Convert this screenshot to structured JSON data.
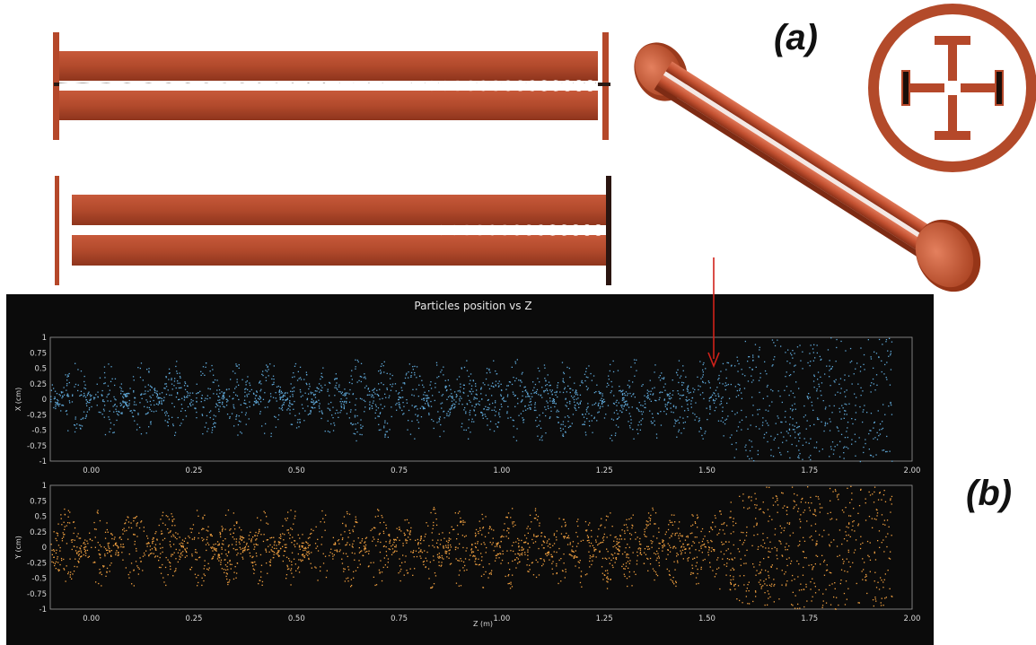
{
  "panels": {
    "a": "(a)",
    "b": "(b)"
  },
  "colors": {
    "electrode": "#b5482a",
    "electrode_dark": "#7a2a16",
    "series_x": "#5fa8d8",
    "series_y": "#f0a040",
    "plot_background": "#0b0b0b",
    "pointer": "#d0221a"
  },
  "chart_data": {
    "type": "scatter",
    "title": "Particles position vs Z",
    "xlabel": "Z (m)",
    "xlim": [
      -0.1,
      2.0
    ],
    "xticks": [
      "0.00",
      "0.25",
      "0.50",
      "0.75",
      "1.00",
      "1.25",
      "1.50",
      "1.75",
      "2.00"
    ],
    "yticks": [
      "1",
      "0.75",
      "0.5",
      "0.25",
      "0",
      "-0.25",
      "-0.5",
      "-0.75",
      "-1"
    ],
    "ylim": [
      -1,
      1
    ],
    "subplots": [
      {
        "name": "X (cm)",
        "ylabel": "X (cm)",
        "color": "#5fa8d8"
      },
      {
        "name": "Y (cm)",
        "ylabel": "Y (cm)",
        "color": "#f0a040"
      }
    ],
    "annotation": {
      "type": "arrow",
      "points_to_z": 1.52
    }
  }
}
